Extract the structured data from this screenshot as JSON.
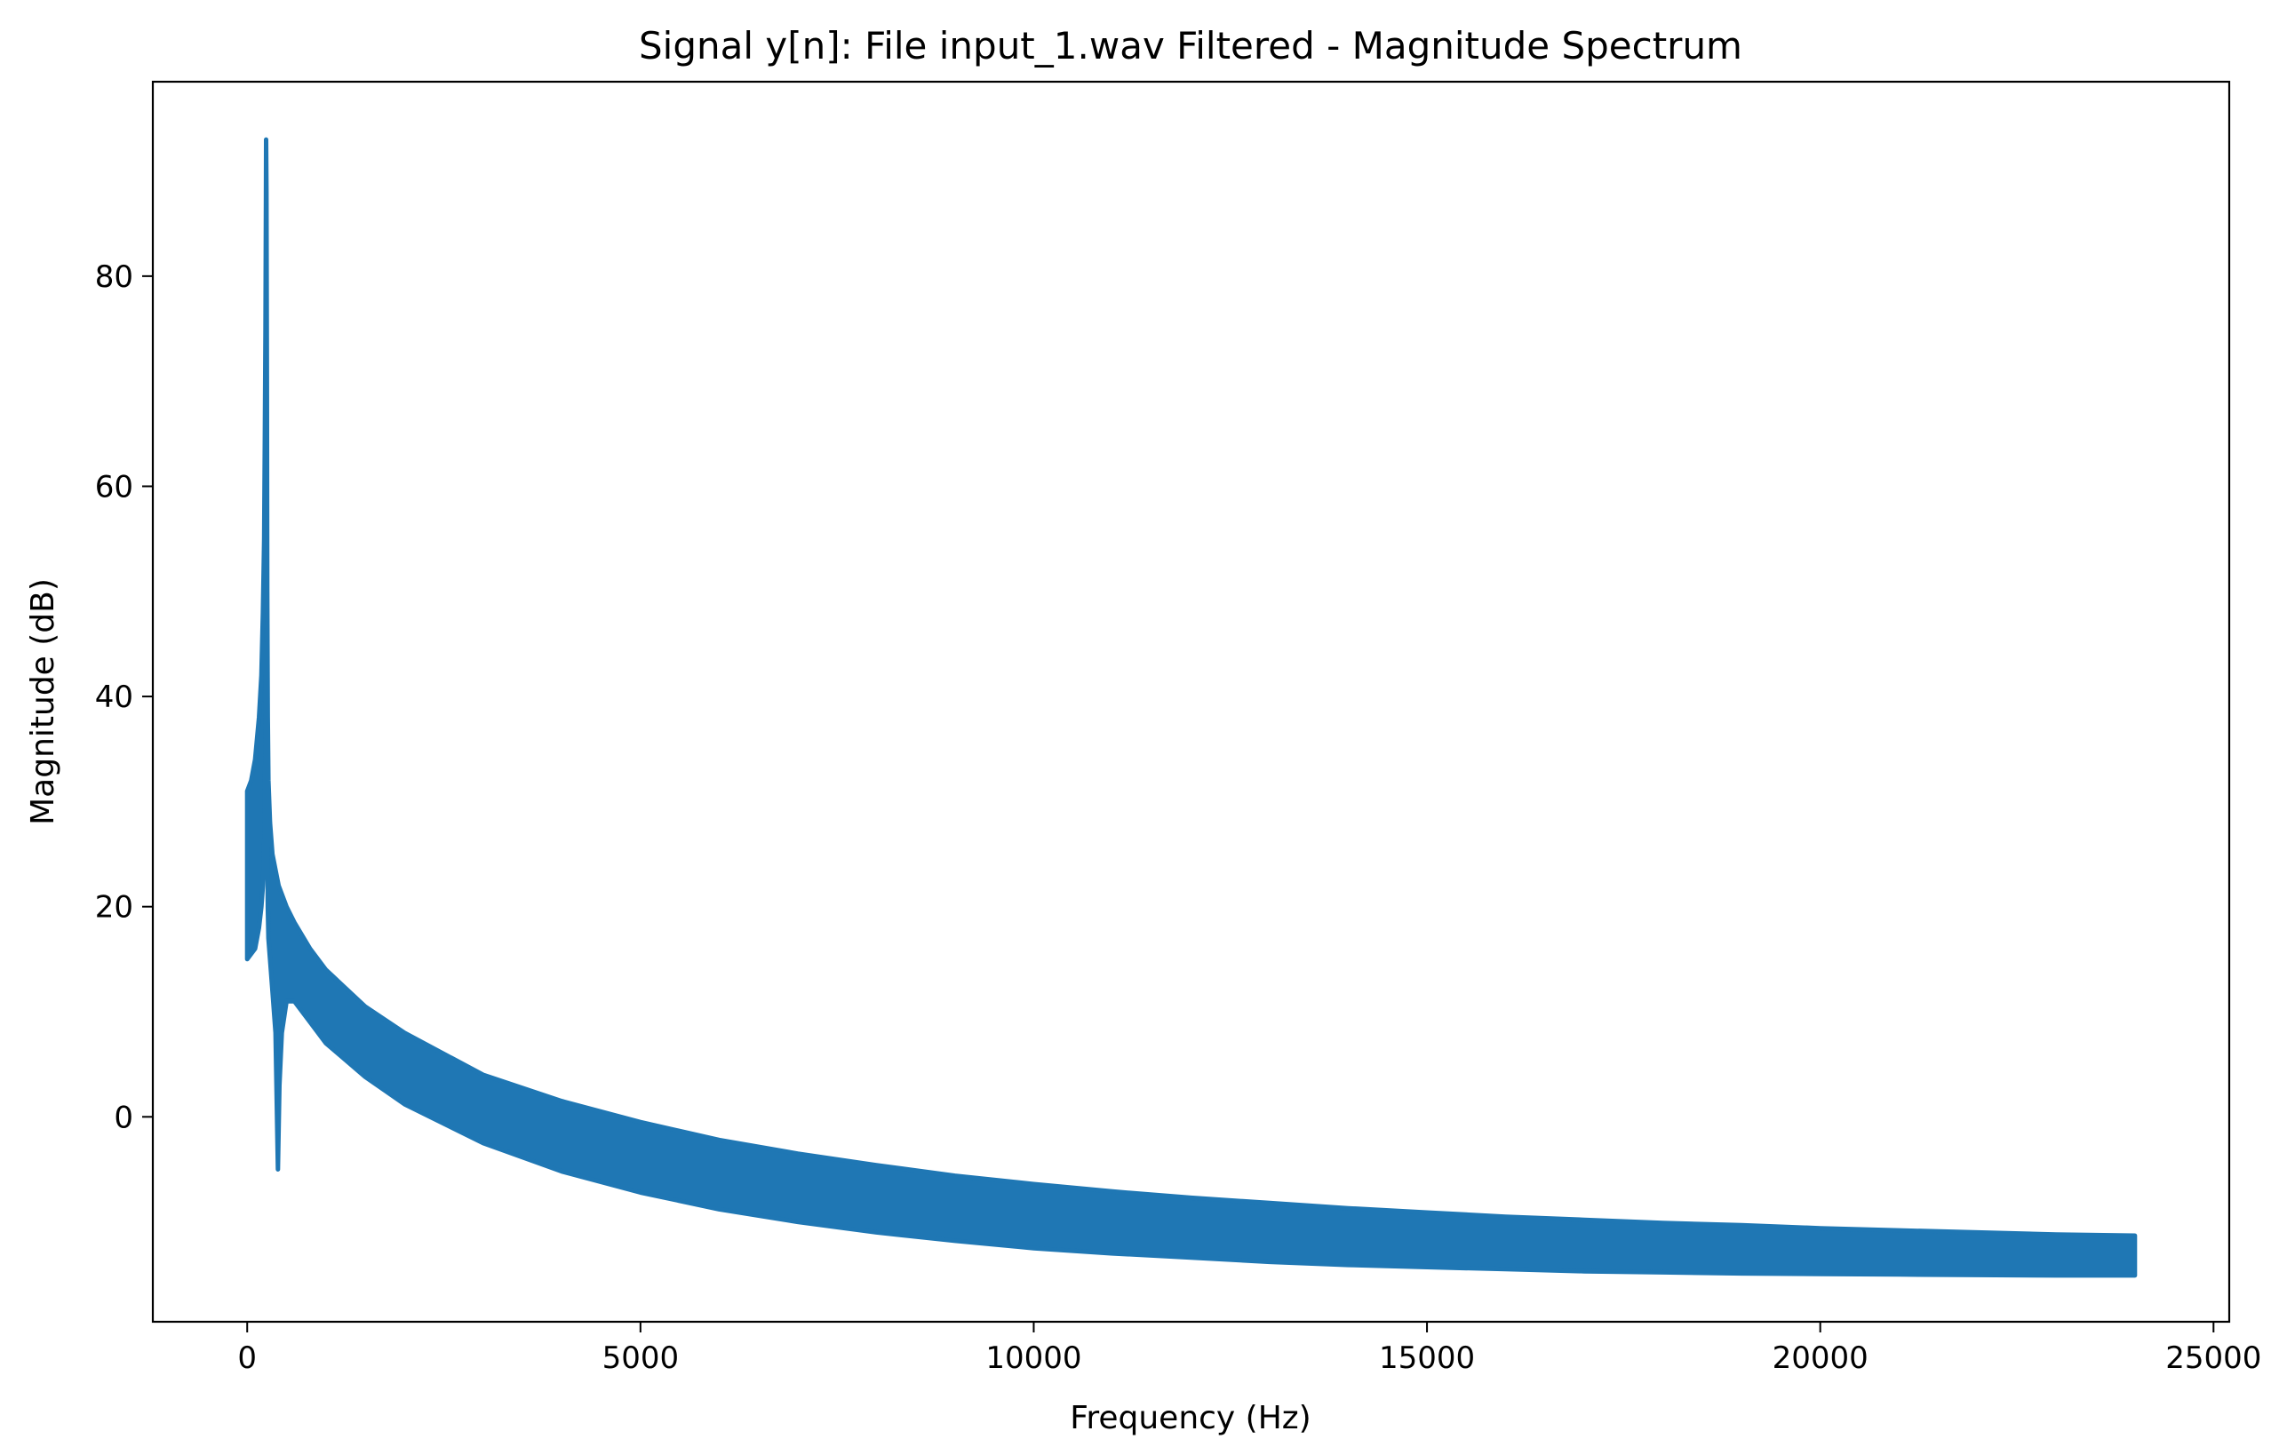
{
  "chart_data": {
    "type": "area",
    "title": "Signal y[n]: File input_1.wav Filtered - Magnitude Spectrum",
    "xlabel": "Frequency (Hz)",
    "ylabel": "Magnitude (dB)",
    "xlim": [
      -1200,
      25200
    ],
    "ylim": [
      -19.5,
      98.5
    ],
    "xticks": [
      0,
      5000,
      10000,
      15000,
      20000,
      25000
    ],
    "xtick_labels": [
      "0",
      "5000",
      "10000",
      "15000",
      "20000",
      "25000"
    ],
    "yticks": [
      0,
      20,
      40,
      60,
      80
    ],
    "ytick_labels": [
      "0",
      "20",
      "40",
      "60",
      "80"
    ],
    "grid": false,
    "legend": "none",
    "color": "#1f77b4",
    "series": [
      {
        "upper": {
          "x": [
            0,
            50,
            100,
            150,
            180,
            200,
            215,
            225,
            232,
            238,
            240,
            245,
            250,
            255,
            262,
            270,
            290,
            320,
            360,
            400,
            500,
            600,
            800,
            1000,
            1500,
            2000,
            3000,
            4000,
            5000,
            6000,
            7000,
            8000,
            9000,
            10000,
            11000,
            12000,
            13000,
            14000,
            15000,
            16000,
            17000,
            18000,
            19000,
            20000,
            21000,
            22000,
            23000,
            24000
          ],
          "y": [
            31,
            32,
            34,
            38,
            42,
            48,
            55,
            65,
            75,
            87,
            93,
            88,
            70,
            50,
            38,
            32,
            28,
            25,
            23.5,
            22,
            20,
            18.5,
            16,
            14,
            10.5,
            8,
            4,
            1.5,
            -0.5,
            -2.2,
            -3.5,
            -4.6,
            -5.6,
            -6.4,
            -7.1,
            -7.7,
            -8.2,
            -8.7,
            -9.1,
            -9.5,
            -9.8,
            -10.1,
            -10.3,
            -10.6,
            -10.8,
            -11,
            -11.2,
            -11.3
          ]
        },
        "lower": {
          "x": [
            0,
            50,
            100,
            150,
            180,
            200,
            215,
            225,
            232,
            238,
            240,
            245,
            250,
            255,
            262,
            270,
            290,
            320,
            360,
            390,
            410,
            440,
            500,
            600,
            800,
            1000,
            1500,
            2000,
            3000,
            4000,
            5000,
            6000,
            7000,
            8000,
            9000,
            10000,
            11000,
            12000,
            13000,
            14000,
            15000,
            16000,
            17000,
            18000,
            19000,
            20000,
            21000,
            22000,
            23000,
            24000
          ],
          "y": [
            15,
            15.5,
            16,
            18,
            20,
            22,
            25,
            30,
            36,
            42,
            45,
            40,
            33,
            27,
            20,
            17,
            15,
            12,
            8,
            -5,
            3,
            8,
            11,
            11,
            9,
            7,
            3.8,
            1.2,
            -2.5,
            -5.2,
            -7.2,
            -8.8,
            -10,
            -11,
            -11.8,
            -12.5,
            -13,
            -13.4,
            -13.8,
            -14.1,
            -14.3,
            -14.5,
            -14.7,
            -14.8,
            -14.9,
            -14.95,
            -15,
            -15.05,
            -15.1,
            -15.1
          ]
        }
      }
    ]
  }
}
